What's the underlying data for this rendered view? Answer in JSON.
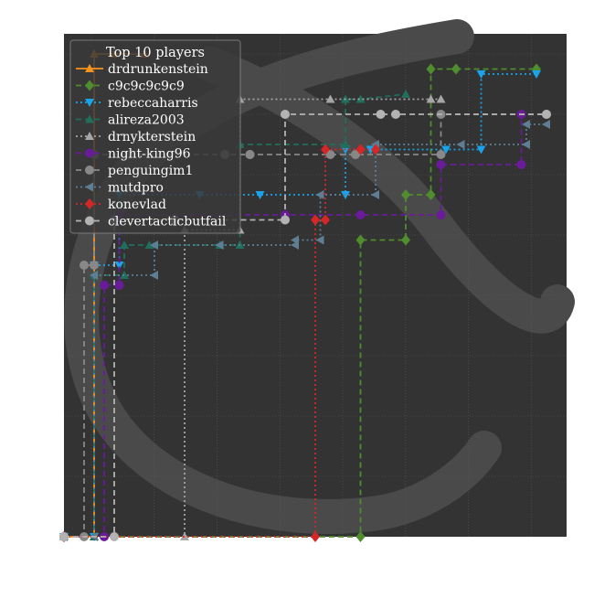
{
  "chart_data": {
    "type": "line",
    "step": true,
    "legend_title": "Top 10 players",
    "legend_position": "top-left",
    "background": "#333333",
    "grid": true,
    "xlim": [
      0,
      1
    ],
    "ylim": [
      0,
      1
    ],
    "watermark": "knight-logo",
    "series": [
      {
        "name": "drdrunkenstein",
        "color": "#f7941d",
        "dash": "",
        "marker": "triangle-up",
        "x": [
          0.0,
          0.06,
          0.06,
          0.1,
          0.16
        ],
        "y": [
          0.0,
          0.0,
          0.96,
          0.96,
          0.96
        ]
      },
      {
        "name": "c9c9c9c9c9",
        "color": "#4f8d2f",
        "dash": "6,4",
        "marker": "diamond",
        "x": [
          0.0,
          0.59,
          0.59,
          0.68,
          0.68,
          0.73,
          0.73,
          0.78,
          0.94
        ],
        "y": [
          0.0,
          0.0,
          0.59,
          0.59,
          0.68,
          0.68,
          0.93,
          0.93,
          0.93
        ]
      },
      {
        "name": "rebeccaharris",
        "color": "#1aa3e8",
        "dash": "2,3",
        "marker": "triangle-down",
        "x": [
          0.0,
          0.06,
          0.06,
          0.11,
          0.11,
          0.27,
          0.39,
          0.56,
          0.56,
          0.61,
          0.76,
          0.83,
          0.83,
          0.94
        ],
        "y": [
          0.0,
          0.0,
          0.54,
          0.54,
          0.68,
          0.68,
          0.68,
          0.68,
          0.77,
          0.77,
          0.77,
          0.77,
          0.92,
          0.92
        ]
      },
      {
        "name": "alireza2003",
        "color": "#1f6f5c",
        "dash": "6,4",
        "marker": "triangle-up",
        "x": [
          0.0,
          0.06,
          0.06,
          0.12,
          0.12,
          0.17,
          0.31,
          0.35,
          0.35,
          0.56,
          0.56,
          0.59,
          0.68
        ],
        "y": [
          0.0,
          0.0,
          0.52,
          0.52,
          0.58,
          0.58,
          0.58,
          0.58,
          0.78,
          0.78,
          0.87,
          0.87,
          0.88
        ]
      },
      {
        "name": "drnykterstein",
        "color": "#a6a6a6",
        "dash": "2,3",
        "marker": "triangle-up",
        "x": [
          0.0,
          0.24,
          0.24,
          0.35,
          0.35,
          0.53,
          0.73,
          0.75
        ],
        "y": [
          0.0,
          0.0,
          0.61,
          0.61,
          0.87,
          0.87,
          0.87,
          0.87
        ]
      },
      {
        "name": "night-king96",
        "color": "#6a1b9a",
        "dash": "6,4",
        "marker": "circle",
        "x": [
          0.0,
          0.08,
          0.08,
          0.11,
          0.11,
          0.44,
          0.59,
          0.75,
          0.75,
          0.91,
          0.91,
          0.96
        ],
        "y": [
          0.0,
          0.0,
          0.5,
          0.5,
          0.64,
          0.64,
          0.64,
          0.64,
          0.74,
          0.74,
          0.84,
          0.84
        ]
      },
      {
        "name": "penguingim1",
        "color": "#888888",
        "dash": "6,4",
        "marker": "circle",
        "x": [
          0.0,
          0.04,
          0.04,
          0.06,
          0.06,
          0.13,
          0.32,
          0.37,
          0.37,
          0.53,
          0.58,
          0.75,
          0.75,
          0.96
        ],
        "y": [
          0.0,
          0.0,
          0.54,
          0.54,
          0.76,
          0.76,
          0.76,
          0.76,
          0.76,
          0.76,
          0.76,
          0.76,
          0.84,
          0.84
        ]
      },
      {
        "name": "mutdpro",
        "color": "#5f7e93",
        "dash": "2,3",
        "marker": "triangle-left",
        "x": [
          0.0,
          0.06,
          0.06,
          0.18,
          0.18,
          0.31,
          0.46,
          0.46,
          0.51,
          0.51,
          0.62,
          0.62,
          0.79,
          0.92,
          0.92,
          0.96
        ],
        "y": [
          0.0,
          0.0,
          0.52,
          0.52,
          0.58,
          0.58,
          0.58,
          0.59,
          0.59,
          0.68,
          0.68,
          0.78,
          0.78,
          0.78,
          0.82,
          0.82
        ]
      },
      {
        "name": "konevlad",
        "color": "#d62728",
        "dash": "2,3",
        "marker": "diamond",
        "x": [
          0.0,
          0.5,
          0.5,
          0.52,
          0.52,
          0.59,
          0.59,
          0.62
        ],
        "y": [
          0.0,
          0.0,
          0.63,
          0.63,
          0.77,
          0.77,
          0.77,
          0.77
        ]
      },
      {
        "name": "clevertacticbutfail",
        "color": "#b3b3b3",
        "dash": "6,4",
        "marker": "circle",
        "x": [
          0.0,
          0.1,
          0.1,
          0.22,
          0.22,
          0.44,
          0.44,
          0.63,
          0.66,
          0.96
        ],
        "y": [
          0.0,
          0.0,
          0.63,
          0.63,
          0.63,
          0.63,
          0.84,
          0.84,
          0.84,
          0.84
        ]
      }
    ]
  }
}
